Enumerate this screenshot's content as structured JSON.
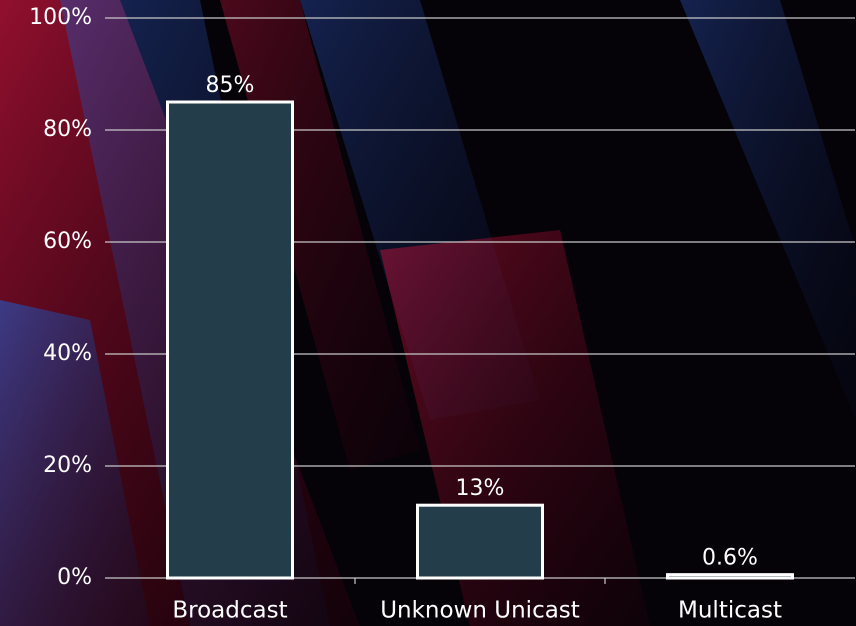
{
  "chart_data": {
    "type": "bar",
    "categories": [
      "Broadcast",
      "Unknown Unicast",
      "Multicast"
    ],
    "values": [
      85,
      13,
      0.6
    ],
    "value_labels": [
      "85%",
      "13%",
      "0.6%"
    ],
    "color": "#243d4a",
    "ylim": [
      0,
      100
    ],
    "yticks": [
      {
        "value": 0,
        "label": "0%"
      },
      {
        "value": 20,
        "label": "20%"
      },
      {
        "value": 40,
        "label": "40%"
      },
      {
        "value": 60,
        "label": "60%"
      },
      {
        "value": 80,
        "label": "80%"
      },
      {
        "value": 100,
        "label": "100%"
      }
    ],
    "grid": true
  }
}
